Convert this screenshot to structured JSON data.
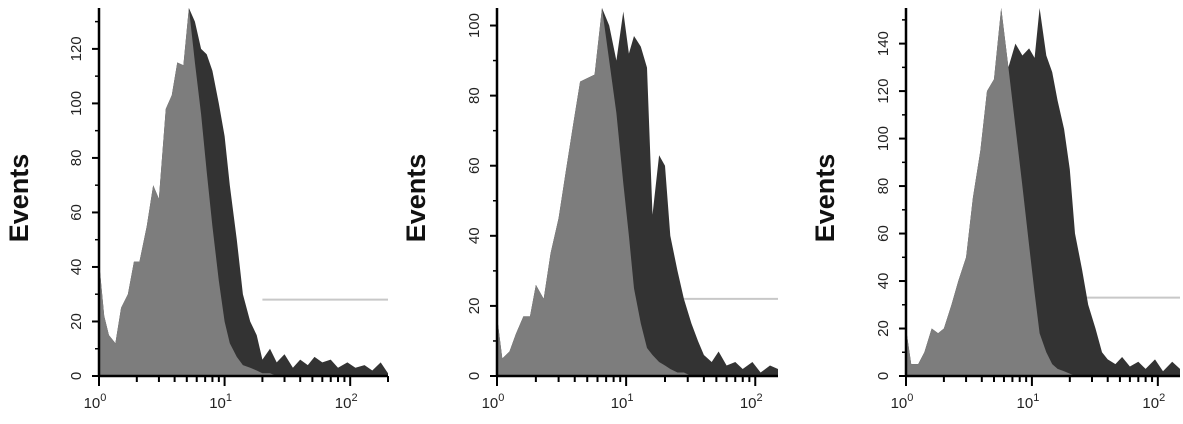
{
  "chart_data": [
    {
      "type": "area",
      "ylabel": "Events",
      "xscale": "log",
      "xlim": [
        1,
        200
      ],
      "ylim": [
        0,
        135
      ],
      "yticks": [
        "0",
        "20",
        "40",
        "60",
        "80",
        "100",
        "120"
      ],
      "xticks": [
        {
          "base": "10",
          "exp": "0"
        },
        {
          "base": "10",
          "exp": "1"
        },
        {
          "base": "10",
          "exp": "2"
        }
      ],
      "colors": {
        "front": "#7d7d7d",
        "back": "#333333",
        "hline": "#c8c8c8"
      },
      "reference_line_y": 28,
      "series": [
        {
          "role": "back",
          "x": [
            1,
            1.1,
            1.2,
            1.35,
            1.5,
            1.7,
            1.9,
            2.1,
            2.4,
            2.7,
            3.0,
            3.4,
            3.8,
            4.2,
            4.7,
            5.2,
            5.8,
            6.5,
            7.2,
            8.0,
            9.0,
            10.0,
            11.0,
            12.5,
            14.0,
            16.0,
            18.0,
            20.0,
            23.0,
            26.0,
            30.0,
            35.0,
            40.0,
            46.0,
            52.0,
            60.0,
            70.0,
            80.0,
            95.0,
            110.0,
            130.0,
            150.0,
            175.0,
            200.0
          ],
          "y": [
            42,
            22,
            15,
            12,
            25,
            30,
            42,
            42,
            55,
            70,
            65,
            98,
            103,
            115,
            114,
            135,
            130,
            120,
            118,
            112,
            100,
            88,
            70,
            50,
            30,
            20,
            15,
            6,
            10,
            5,
            8,
            3,
            6,
            4,
            7,
            5,
            6,
            3,
            5,
            3,
            4,
            2,
            5,
            1
          ]
        },
        {
          "role": "front",
          "x": [
            1,
            1.1,
            1.2,
            1.35,
            1.5,
            1.7,
            1.9,
            2.1,
            2.4,
            2.7,
            3.0,
            3.4,
            3.8,
            4.2,
            4.7,
            5.2,
            5.8,
            6.5,
            7.2,
            8.0,
            9.0,
            10.0,
            11.0,
            12.5,
            14.0,
            16.0,
            18.0,
            20.0,
            23.0,
            26.0,
            30.0,
            35.0,
            40.0,
            46.0,
            52.0,
            60.0,
            70.0,
            80.0,
            95.0,
            110.0,
            130.0,
            150.0,
            175.0,
            200.0
          ],
          "y": [
            42,
            22,
            15,
            12,
            25,
            30,
            42,
            42,
            55,
            70,
            65,
            98,
            103,
            115,
            114,
            135,
            115,
            96,
            75,
            55,
            35,
            20,
            12,
            7,
            4,
            3,
            2,
            1,
            1,
            0,
            0,
            0,
            0,
            0,
            0,
            0,
            0,
            0,
            0,
            0,
            0,
            0,
            0,
            0
          ]
        }
      ]
    },
    {
      "type": "area",
      "ylabel": "Events",
      "xscale": "log",
      "xlim": [
        1,
        150
      ],
      "ylim": [
        0,
        105
      ],
      "yticks": [
        "0",
        "20",
        "40",
        "60",
        "80",
        "100"
      ],
      "xticks": [
        {
          "base": "10",
          "exp": "0"
        },
        {
          "base": "10",
          "exp": "1"
        },
        {
          "base": "10",
          "exp": "2"
        }
      ],
      "colors": {
        "front": "#7d7d7d",
        "back": "#333333",
        "hline": "#c8c8c8"
      },
      "reference_line_y": 22,
      "series": [
        {
          "role": "back",
          "x": [
            1,
            1.1,
            1.25,
            1.4,
            1.6,
            1.8,
            2.0,
            2.3,
            2.6,
            3.0,
            3.4,
            3.9,
            4.4,
            5.0,
            5.7,
            6.5,
            7.4,
            8.4,
            9.5,
            10.5,
            11.5,
            13.0,
            14.5,
            16.0,
            18.0,
            20.0,
            22.0,
            25.0,
            28.0,
            32.0,
            36.0,
            40.0,
            46.0,
            52.0,
            60.0,
            70.0,
            80.0,
            95.0,
            110.0,
            130.0,
            150.0
          ],
          "y": [
            17,
            5,
            7,
            12,
            17,
            17,
            26,
            22,
            35,
            45,
            58,
            72,
            84,
            85,
            86,
            105,
            100,
            90,
            104,
            92,
            97,
            94,
            88,
            46,
            63,
            60,
            40,
            30,
            22,
            15,
            10,
            6,
            4,
            7,
            3,
            4,
            2,
            4,
            1,
            3,
            2
          ]
        },
        {
          "role": "front",
          "x": [
            1,
            1.1,
            1.25,
            1.4,
            1.6,
            1.8,
            2.0,
            2.3,
            2.6,
            3.0,
            3.4,
            3.9,
            4.4,
            5.0,
            5.7,
            6.5,
            7.4,
            8.4,
            9.5,
            10.5,
            11.5,
            13.0,
            14.5,
            16.0,
            18.0,
            20.0,
            22.0,
            25.0,
            28.0,
            32.0,
            36.0,
            40.0,
            46.0,
            52.0,
            60.0,
            70.0,
            80.0,
            95.0,
            110.0,
            130.0,
            150.0
          ],
          "y": [
            17,
            5,
            7,
            12,
            17,
            17,
            26,
            22,
            35,
            45,
            58,
            72,
            84,
            85,
            86,
            105,
            90,
            75,
            55,
            40,
            25,
            15,
            8,
            6,
            4,
            3,
            2,
            1,
            1,
            0,
            0,
            0,
            0,
            0,
            0,
            0,
            0,
            0,
            0,
            0,
            0
          ]
        }
      ]
    },
    {
      "type": "area",
      "ylabel": "Events",
      "xscale": "log",
      "xlim": [
        1,
        150
      ],
      "ylim": [
        0,
        155
      ],
      "yticks": [
        "0",
        "20",
        "40",
        "60",
        "80",
        "100",
        "120",
        "140"
      ],
      "xticks": [
        {
          "base": "10",
          "exp": "0"
        },
        {
          "base": "10",
          "exp": "1"
        },
        {
          "base": "10",
          "exp": "2"
        }
      ],
      "colors": {
        "front": "#7d7d7d",
        "back": "#333333",
        "hline": "#c8c8c8"
      },
      "reference_line_y": 33,
      "series": [
        {
          "role": "back",
          "x": [
            1,
            1.1,
            1.25,
            1.4,
            1.6,
            1.8,
            2.0,
            2.3,
            2.6,
            3.0,
            3.4,
            3.9,
            4.4,
            5.0,
            5.7,
            6.5,
            7.4,
            8.4,
            9.5,
            10.5,
            11.5,
            13.0,
            14.5,
            16.0,
            18.0,
            20.0,
            22.0,
            25.0,
            28.0,
            32.0,
            36.0,
            40.0,
            46.0,
            52.0,
            60.0,
            70.0,
            80.0,
            95.0,
            110.0,
            130.0,
            150.0
          ],
          "y": [
            20,
            5,
            5,
            10,
            20,
            18,
            20,
            30,
            40,
            50,
            75,
            95,
            120,
            125,
            155,
            130,
            140,
            135,
            138,
            134,
            155,
            135,
            128,
            116,
            104,
            87,
            60,
            45,
            30,
            20,
            10,
            7,
            5,
            8,
            4,
            6,
            3,
            7,
            2,
            6,
            3
          ]
        },
        {
          "role": "front",
          "x": [
            1,
            1.1,
            1.25,
            1.4,
            1.6,
            1.8,
            2.0,
            2.3,
            2.6,
            3.0,
            3.4,
            3.9,
            4.4,
            5.0,
            5.7,
            6.5,
            7.4,
            8.4,
            9.5,
            10.5,
            11.5,
            13.0,
            14.5,
            16.0,
            18.0,
            20.0,
            22.0,
            25.0,
            28.0,
            32.0,
            36.0,
            40.0,
            46.0,
            52.0,
            60.0,
            70.0,
            80.0,
            95.0,
            110.0,
            130.0,
            150.0
          ],
          "y": [
            20,
            5,
            5,
            10,
            20,
            18,
            20,
            30,
            40,
            50,
            75,
            95,
            120,
            125,
            155,
            130,
            105,
            80,
            55,
            35,
            18,
            10,
            5,
            3,
            2,
            1,
            0,
            0,
            0,
            0,
            0,
            0,
            0,
            0,
            0,
            0,
            0,
            0,
            0,
            0,
            0
          ]
        }
      ]
    }
  ]
}
